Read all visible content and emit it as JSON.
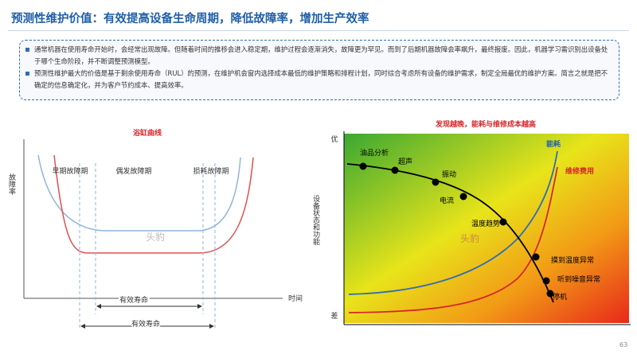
{
  "header": {
    "title": "预测性维护价值：有效提高设备生命周期，降低故障率，增加生产效率"
  },
  "summary": {
    "bullets": [
      "通常机器在使用寿命开始时，会经常出现故障。但随着时间的推移会进入稳定期，维护过程会逐渐消失，故障更为罕见。而到了后期机器故障会率飙升，最终报废。因此，机器学习需识别出设备处于哪个生命阶段，并不断调整预测模型。",
      "预测性维护最大的价值是基于剩余使用寿命（RUL）的预测，在维护机会窗内选择成本最低的维护策略和排程计划，同时综合考虑所有设备的维护需求，制定全局最优的维护方案。简言之就是把不确定的信息确定化，并为客户节约成本、提高效率。"
    ]
  },
  "left_diagram": {
    "title": "浴缸曲线",
    "y_label": "故障率",
    "x_label": "时间",
    "phases": [
      "早期故障期",
      "偶发故障期",
      "损耗故障期"
    ],
    "spans": [
      "有效寿命",
      "有效寿命"
    ],
    "watermark": "头豹"
  },
  "right_diagram": {
    "title": "发现越晚，能耗与维修成本越高",
    "y_label": "设备状态和功能",
    "y_top": "优",
    "y_bottom": "差",
    "curves": [
      "能耗",
      "维修费用"
    ],
    "points": [
      "油品分析",
      "超声",
      "振动",
      "电流",
      "温度趋势",
      "摸到温度异常",
      "听到噪音异常",
      "停机"
    ],
    "watermark": "头豹"
  },
  "footer": {
    "page": "63"
  }
}
